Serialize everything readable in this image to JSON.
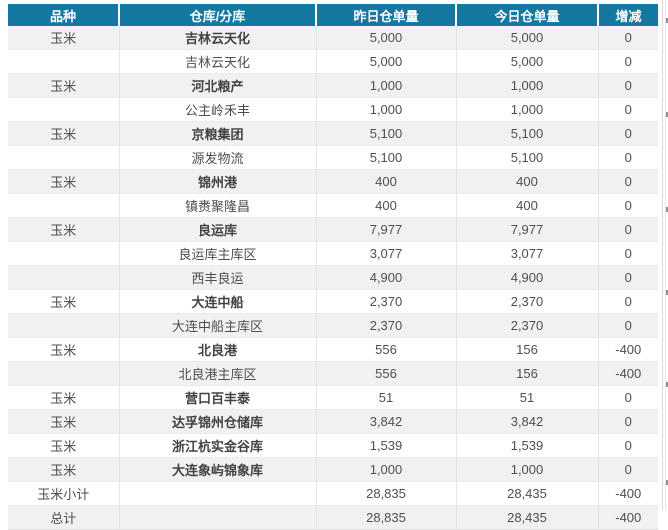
{
  "table": {
    "columns": [
      {
        "key": "variety",
        "label": "品种"
      },
      {
        "key": "warehouse",
        "label": "仓库/分库"
      },
      {
        "key": "yesterday",
        "label": "昨日仓单量"
      },
      {
        "key": "today",
        "label": "今日仓单量"
      },
      {
        "key": "change",
        "label": "增减"
      }
    ],
    "rows": [
      {
        "variety": "玉米",
        "warehouse": "吉林云天化",
        "bold": true,
        "yesterday": "5,000",
        "today": "5,000",
        "change": "0"
      },
      {
        "variety": "",
        "warehouse": "吉林云天化",
        "bold": false,
        "yesterday": "5,000",
        "today": "5,000",
        "change": "0"
      },
      {
        "variety": "玉米",
        "warehouse": "河北粮产",
        "bold": true,
        "yesterday": "1,000",
        "today": "1,000",
        "change": "0"
      },
      {
        "variety": "",
        "warehouse": "公主岭禾丰",
        "bold": false,
        "yesterday": "1,000",
        "today": "1,000",
        "change": "0"
      },
      {
        "variety": "玉米",
        "warehouse": "京粮集团",
        "bold": true,
        "yesterday": "5,100",
        "today": "5,100",
        "change": "0"
      },
      {
        "variety": "",
        "warehouse": "源发物流",
        "bold": false,
        "yesterday": "5,100",
        "today": "5,100",
        "change": "0"
      },
      {
        "variety": "玉米",
        "warehouse": "锦州港",
        "bold": true,
        "yesterday": "400",
        "today": "400",
        "change": "0"
      },
      {
        "variety": "",
        "warehouse": "镇赉聚隆昌",
        "bold": false,
        "yesterday": "400",
        "today": "400",
        "change": "0"
      },
      {
        "variety": "玉米",
        "warehouse": "良运库",
        "bold": true,
        "yesterday": "7,977",
        "today": "7,977",
        "change": "0"
      },
      {
        "variety": "",
        "warehouse": "良运库主库区",
        "bold": false,
        "yesterday": "3,077",
        "today": "3,077",
        "change": "0"
      },
      {
        "variety": "",
        "warehouse": "西丰良运",
        "bold": false,
        "yesterday": "4,900",
        "today": "4,900",
        "change": "0"
      },
      {
        "variety": "玉米",
        "warehouse": "大连中船",
        "bold": true,
        "yesterday": "2,370",
        "today": "2,370",
        "change": "0"
      },
      {
        "variety": "",
        "warehouse": "大连中船主库区",
        "bold": false,
        "yesterday": "2,370",
        "today": "2,370",
        "change": "0"
      },
      {
        "variety": "玉米",
        "warehouse": "北良港",
        "bold": true,
        "yesterday": "556",
        "today": "156",
        "change": "-400"
      },
      {
        "variety": "",
        "warehouse": "北良港主库区",
        "bold": false,
        "yesterday": "556",
        "today": "156",
        "change": "-400"
      },
      {
        "variety": "玉米",
        "warehouse": "营口百丰泰",
        "bold": true,
        "yesterday": "51",
        "today": "51",
        "change": "0"
      },
      {
        "variety": "玉米",
        "warehouse": "达孚锦州仓储库",
        "bold": true,
        "yesterday": "3,842",
        "today": "3,842",
        "change": "0"
      },
      {
        "variety": "玉米",
        "warehouse": "浙江杭实金谷库",
        "bold": true,
        "yesterday": "1,539",
        "today": "1,539",
        "change": "0"
      },
      {
        "variety": "玉米",
        "warehouse": "大连象屿锦象库",
        "bold": true,
        "yesterday": "1,000",
        "today": "1,000",
        "change": "0"
      },
      {
        "variety": "玉米小计",
        "warehouse": "",
        "bold": false,
        "yesterday": "28,835",
        "today": "28,435",
        "change": "-400"
      },
      {
        "variety": "总计",
        "warehouse": "",
        "bold": false,
        "yesterday": "28,835",
        "today": "28,435",
        "change": "-400"
      }
    ]
  },
  "colors": {
    "header_bg": "#1578a0",
    "header_text": "#ffffff",
    "row_alt_bg": "#f0f1f3",
    "row_bg": "#ffffff",
    "border": "#e2e3e5",
    "body_text": "#4f4f4f"
  },
  "right_edge_ticks_y": [
    18,
    112,
    207,
    290,
    382,
    480
  ]
}
